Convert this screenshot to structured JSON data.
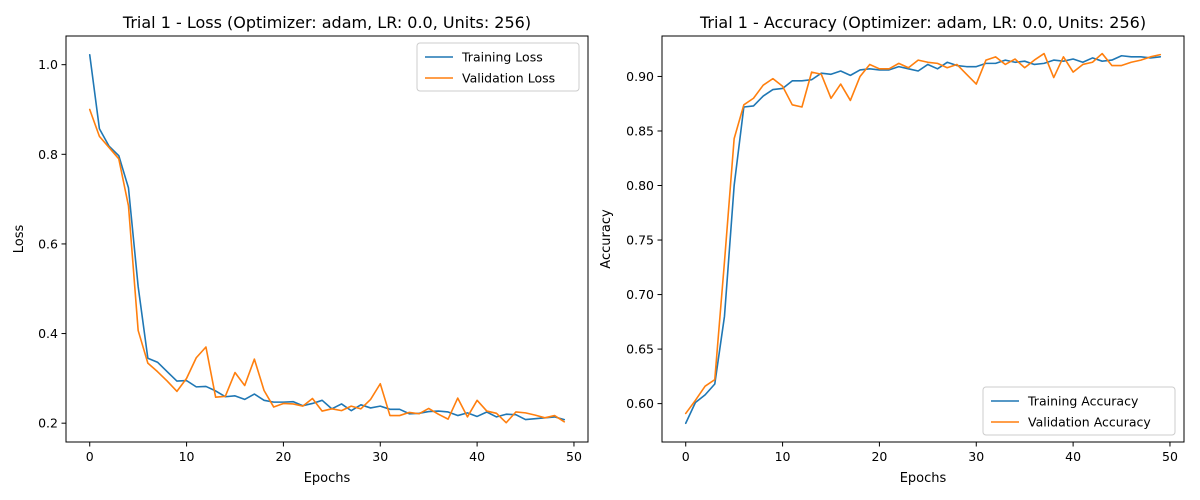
{
  "colors": {
    "training": "#1f77b4",
    "validation": "#ff7f0e"
  },
  "chart_data": [
    {
      "type": "line",
      "title": "Trial 1 - Loss (Optimizer: adam, LR: 0.0, Units: 256)",
      "xlabel": "Epochs",
      "ylabel": "Loss",
      "xlim": [
        -2.45,
        51.45
      ],
      "ylim": [
        0.158,
        1.064
      ],
      "xticks": [
        0,
        10,
        20,
        30,
        40,
        50
      ],
      "xtick_labels": [
        "0",
        "10",
        "20",
        "30",
        "40",
        "50"
      ],
      "yticks": [
        0.2,
        0.4,
        0.6,
        0.8,
        1.0
      ],
      "ytick_labels": [
        "0.2",
        "0.4",
        "0.6",
        "0.8",
        "1.0"
      ],
      "grid": false,
      "legend_position": "upper right",
      "x": [
        0,
        1,
        2,
        3,
        4,
        5,
        6,
        7,
        8,
        9,
        10,
        11,
        12,
        13,
        14,
        15,
        16,
        17,
        18,
        19,
        20,
        21,
        22,
        23,
        24,
        25,
        26,
        27,
        28,
        29,
        30,
        31,
        32,
        33,
        34,
        35,
        36,
        37,
        38,
        39,
        40,
        41,
        42,
        43,
        44,
        45,
        46,
        47,
        48,
        49
      ],
      "series": [
        {
          "name": "Training Loss",
          "values": [
            1.022,
            0.857,
            0.818,
            0.797,
            0.725,
            0.505,
            0.345,
            0.336,
            0.315,
            0.294,
            0.295,
            0.281,
            0.282,
            0.272,
            0.259,
            0.261,
            0.253,
            0.265,
            0.251,
            0.247,
            0.247,
            0.248,
            0.239,
            0.244,
            0.251,
            0.232,
            0.243,
            0.228,
            0.241,
            0.234,
            0.238,
            0.231,
            0.231,
            0.221,
            0.222,
            0.226,
            0.227,
            0.225,
            0.217,
            0.223,
            0.215,
            0.225,
            0.214,
            0.22,
            0.219,
            0.208,
            0.21,
            0.212,
            0.214,
            0.208
          ]
        },
        {
          "name": "Validation Loss",
          "values": [
            0.9,
            0.84,
            0.815,
            0.79,
            0.685,
            0.407,
            0.334,
            0.315,
            0.294,
            0.271,
            0.3,
            0.346,
            0.37,
            0.258,
            0.26,
            0.313,
            0.284,
            0.343,
            0.273,
            0.236,
            0.244,
            0.243,
            0.238,
            0.255,
            0.227,
            0.232,
            0.228,
            0.238,
            0.232,
            0.253,
            0.288,
            0.217,
            0.217,
            0.224,
            0.221,
            0.233,
            0.22,
            0.209,
            0.256,
            0.214,
            0.251,
            0.227,
            0.222,
            0.201,
            0.225,
            0.223,
            0.218,
            0.212,
            0.217,
            0.203
          ]
        }
      ]
    },
    {
      "type": "line",
      "title": "Trial 1 - Accuracy (Optimizer: adam, LR: 0.0, Units: 256)",
      "xlabel": "Epochs",
      "ylabel": "Accuracy",
      "xlim": [
        -2.45,
        51.45
      ],
      "ylim": [
        0.5648,
        0.9371
      ],
      "xticks": [
        0,
        10,
        20,
        30,
        40,
        50
      ],
      "xtick_labels": [
        "0",
        "10",
        "20",
        "30",
        "40",
        "50"
      ],
      "yticks": [
        0.6,
        0.65,
        0.7,
        0.75,
        0.8,
        0.85,
        0.9
      ],
      "ytick_labels": [
        "0.60",
        "0.65",
        "0.70",
        "0.75",
        "0.80",
        "0.85",
        "0.90"
      ],
      "grid": false,
      "legend_position": "lower right",
      "x": [
        0,
        1,
        2,
        3,
        4,
        5,
        6,
        7,
        8,
        9,
        10,
        11,
        12,
        13,
        14,
        15,
        16,
        17,
        18,
        19,
        20,
        21,
        22,
        23,
        24,
        25,
        26,
        27,
        28,
        29,
        30,
        31,
        32,
        33,
        34,
        35,
        36,
        37,
        38,
        39,
        40,
        41,
        42,
        43,
        44,
        45,
        46,
        47,
        48,
        49
      ],
      "series": [
        {
          "name": "Training Accuracy",
          "values": [
            0.582,
            0.601,
            0.608,
            0.618,
            0.68,
            0.8,
            0.872,
            0.873,
            0.882,
            0.888,
            0.889,
            0.896,
            0.896,
            0.897,
            0.903,
            0.902,
            0.905,
            0.901,
            0.906,
            0.907,
            0.906,
            0.906,
            0.909,
            0.907,
            0.905,
            0.911,
            0.907,
            0.913,
            0.91,
            0.909,
            0.909,
            0.912,
            0.912,
            0.915,
            0.913,
            0.914,
            0.911,
            0.912,
            0.915,
            0.914,
            0.916,
            0.913,
            0.917,
            0.914,
            0.915,
            0.919,
            0.918,
            0.918,
            0.917,
            0.918
          ]
        },
        {
          "name": "Validation Accuracy",
          "values": [
            0.591,
            0.603,
            0.616,
            0.622,
            0.73,
            0.843,
            0.874,
            0.88,
            0.892,
            0.898,
            0.891,
            0.874,
            0.872,
            0.904,
            0.902,
            0.88,
            0.893,
            0.878,
            0.9,
            0.911,
            0.907,
            0.907,
            0.912,
            0.908,
            0.915,
            0.913,
            0.912,
            0.908,
            0.911,
            0.902,
            0.893,
            0.915,
            0.918,
            0.911,
            0.916,
            0.908,
            0.915,
            0.921,
            0.899,
            0.918,
            0.904,
            0.911,
            0.913,
            0.921,
            0.91,
            0.91,
            0.913,
            0.915,
            0.918,
            0.92
          ]
        }
      ]
    }
  ]
}
